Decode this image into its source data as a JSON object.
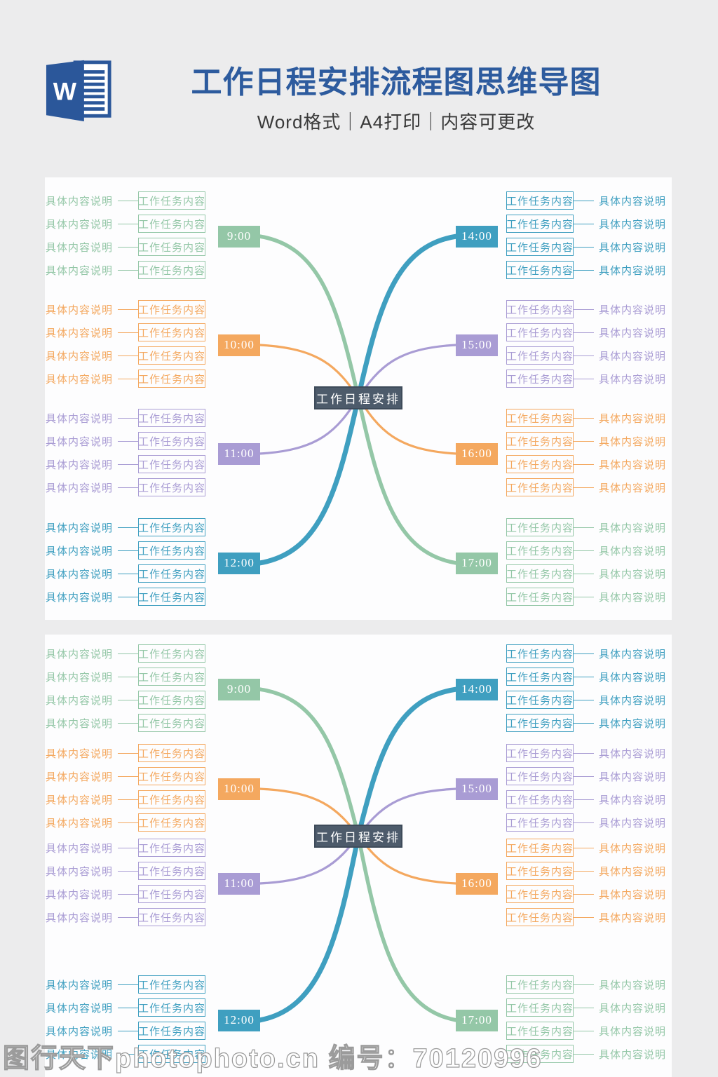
{
  "header": {
    "title": "工作日程安排流程图思维导图",
    "subtitle": "Word格式｜A4打印｜内容可更改",
    "title_color": "#2d5b9e",
    "word_logo_letter": "W",
    "word_logo_color": "#2b579a"
  },
  "mindmap": {
    "center_label": "工作日程安排",
    "center_bg": "#4d5b6b",
    "center_border": "#3e4b5a",
    "task_label": "工作任务内容",
    "desc_label": "具体内容说明",
    "tasks_per_branch": 4,
    "branches": [
      {
        "time": "9:00",
        "side": "left",
        "color": "#94c7a7"
      },
      {
        "time": "10:00",
        "side": "left",
        "color": "#f4a85f"
      },
      {
        "time": "11:00",
        "side": "left",
        "color": "#a99cd4"
      },
      {
        "time": "12:00",
        "side": "left",
        "color": "#3f9fc0"
      },
      {
        "time": "14:00",
        "side": "right",
        "color": "#3f9fc0"
      },
      {
        "time": "15:00",
        "side": "right",
        "color": "#a99cd4"
      },
      {
        "time": "16:00",
        "side": "right",
        "color": "#f4a85f"
      },
      {
        "time": "17:00",
        "side": "right",
        "color": "#94c7a7"
      }
    ]
  },
  "panels": [
    {
      "name": "mindmap-page-1"
    },
    {
      "name": "mindmap-page-2"
    }
  ],
  "watermark": {
    "text": "图行天下photophoto.cn 编号：70120996"
  }
}
